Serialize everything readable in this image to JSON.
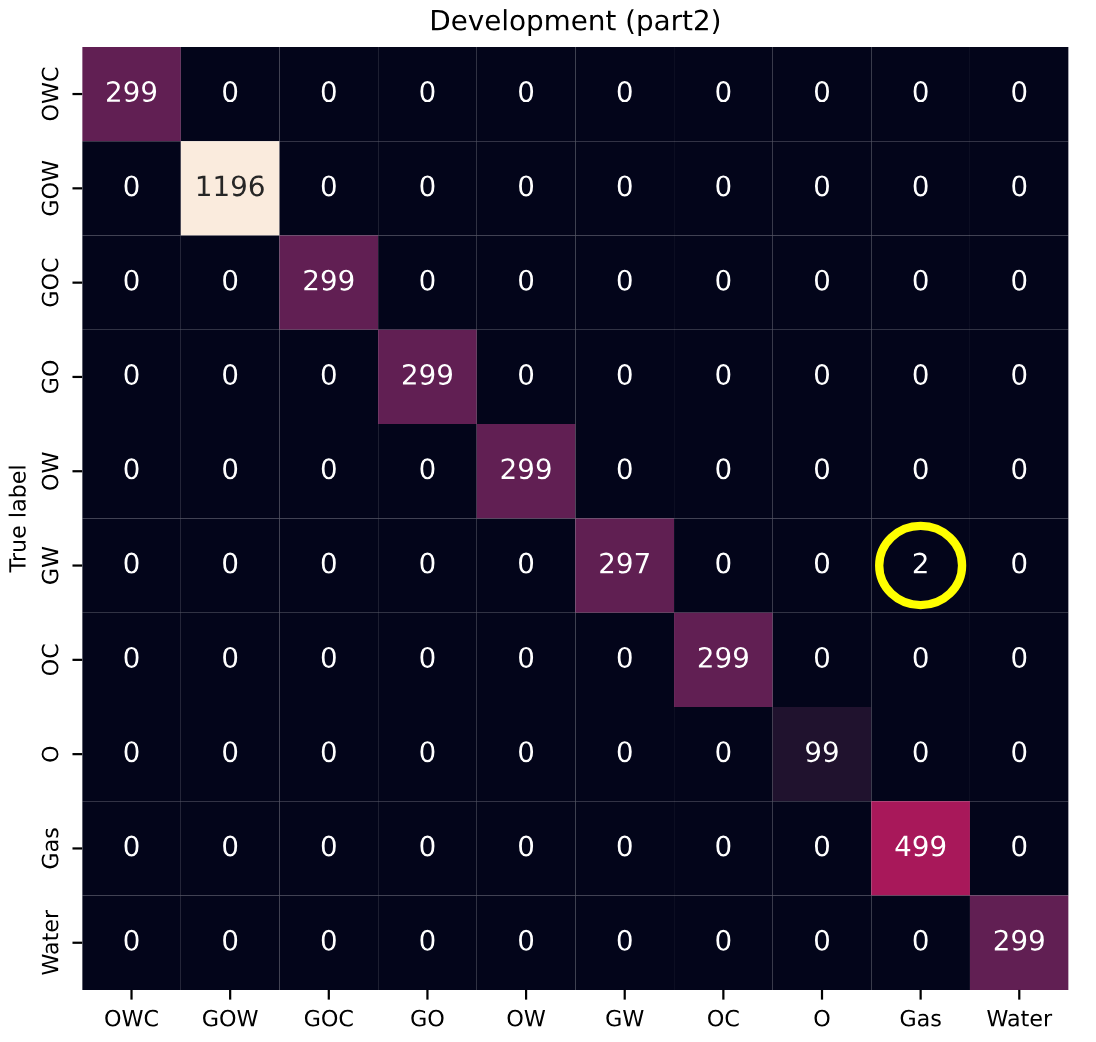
{
  "chart_data": {
    "type": "heatmap",
    "title": "Development (part2)",
    "ylabel": "True label",
    "categories": [
      "OWC",
      "GOW",
      "GOC",
      "GO",
      "OW",
      "GW",
      "OC",
      "O",
      "Gas",
      "Water"
    ],
    "y_categories": [
      "OWC",
      "GOW",
      "GOC",
      "GO",
      "OW",
      "GW",
      "OC",
      "O",
      "Gas",
      "Water"
    ],
    "cells": [
      [
        299,
        0,
        0,
        0,
        0,
        0,
        0,
        0,
        0,
        0
      ],
      [
        0,
        1196,
        0,
        0,
        0,
        0,
        0,
        0,
        0,
        0
      ],
      [
        0,
        0,
        299,
        0,
        0,
        0,
        0,
        0,
        0,
        0
      ],
      [
        0,
        0,
        0,
        299,
        0,
        0,
        0,
        0,
        0,
        0
      ],
      [
        0,
        0,
        0,
        0,
        299,
        0,
        0,
        0,
        0,
        0
      ],
      [
        0,
        0,
        0,
        0,
        0,
        297,
        0,
        0,
        2,
        0
      ],
      [
        0,
        0,
        0,
        0,
        0,
        0,
        299,
        0,
        0,
        0
      ],
      [
        0,
        0,
        0,
        0,
        0,
        0,
        0,
        99,
        0,
        0
      ],
      [
        0,
        0,
        0,
        0,
        0,
        0,
        0,
        0,
        499,
        0
      ],
      [
        0,
        0,
        0,
        0,
        0,
        0,
        0,
        0,
        0,
        299
      ]
    ],
    "data_labels": true
  }
}
